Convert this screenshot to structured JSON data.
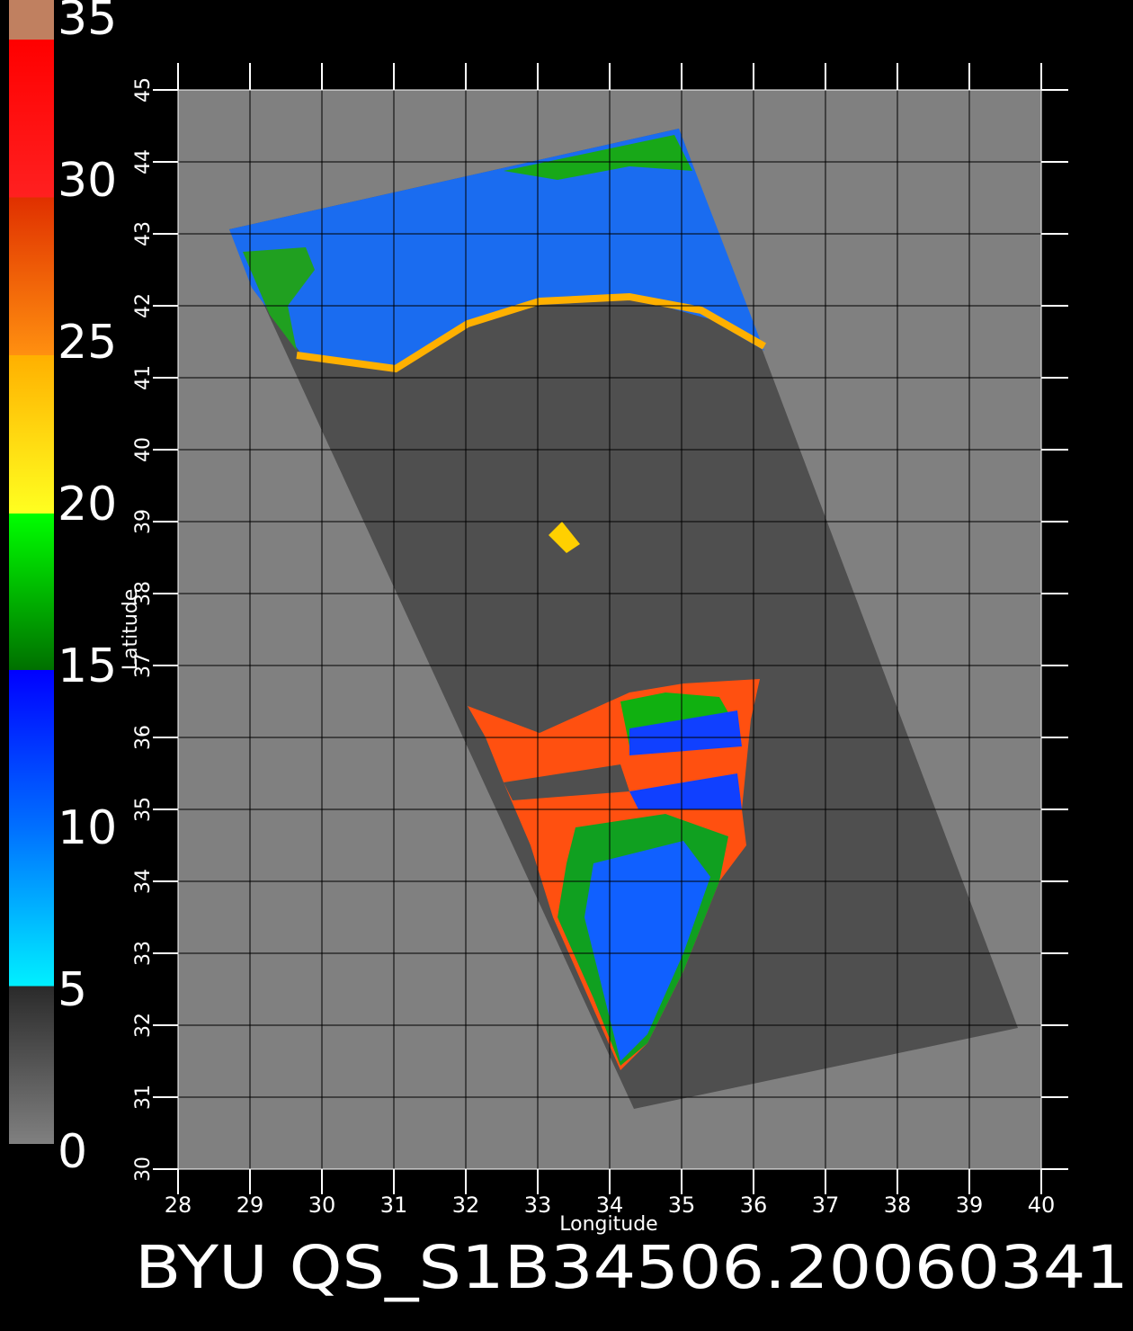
{
  "map": {
    "colorbar": {
      "lim": [
        0,
        35
      ],
      "ticks": [
        0,
        5,
        10,
        15,
        20,
        25,
        30,
        35
      ]
    },
    "xaxis": {
      "label": "Longitude",
      "lim": [
        28,
        40
      ],
      "ticks": [
        28,
        29,
        30,
        31,
        32,
        33,
        34,
        35,
        36,
        37,
        38,
        39,
        40
      ]
    },
    "yaxis": {
      "label": "Latitude",
      "lim": [
        30,
        45
      ],
      "ticks": [
        30,
        31,
        32,
        33,
        34,
        35,
        36,
        37,
        38,
        39,
        40,
        41,
        42,
        43,
        44,
        45
      ]
    },
    "footer": "BYU  QS_S1B34506.20060341"
  }
}
